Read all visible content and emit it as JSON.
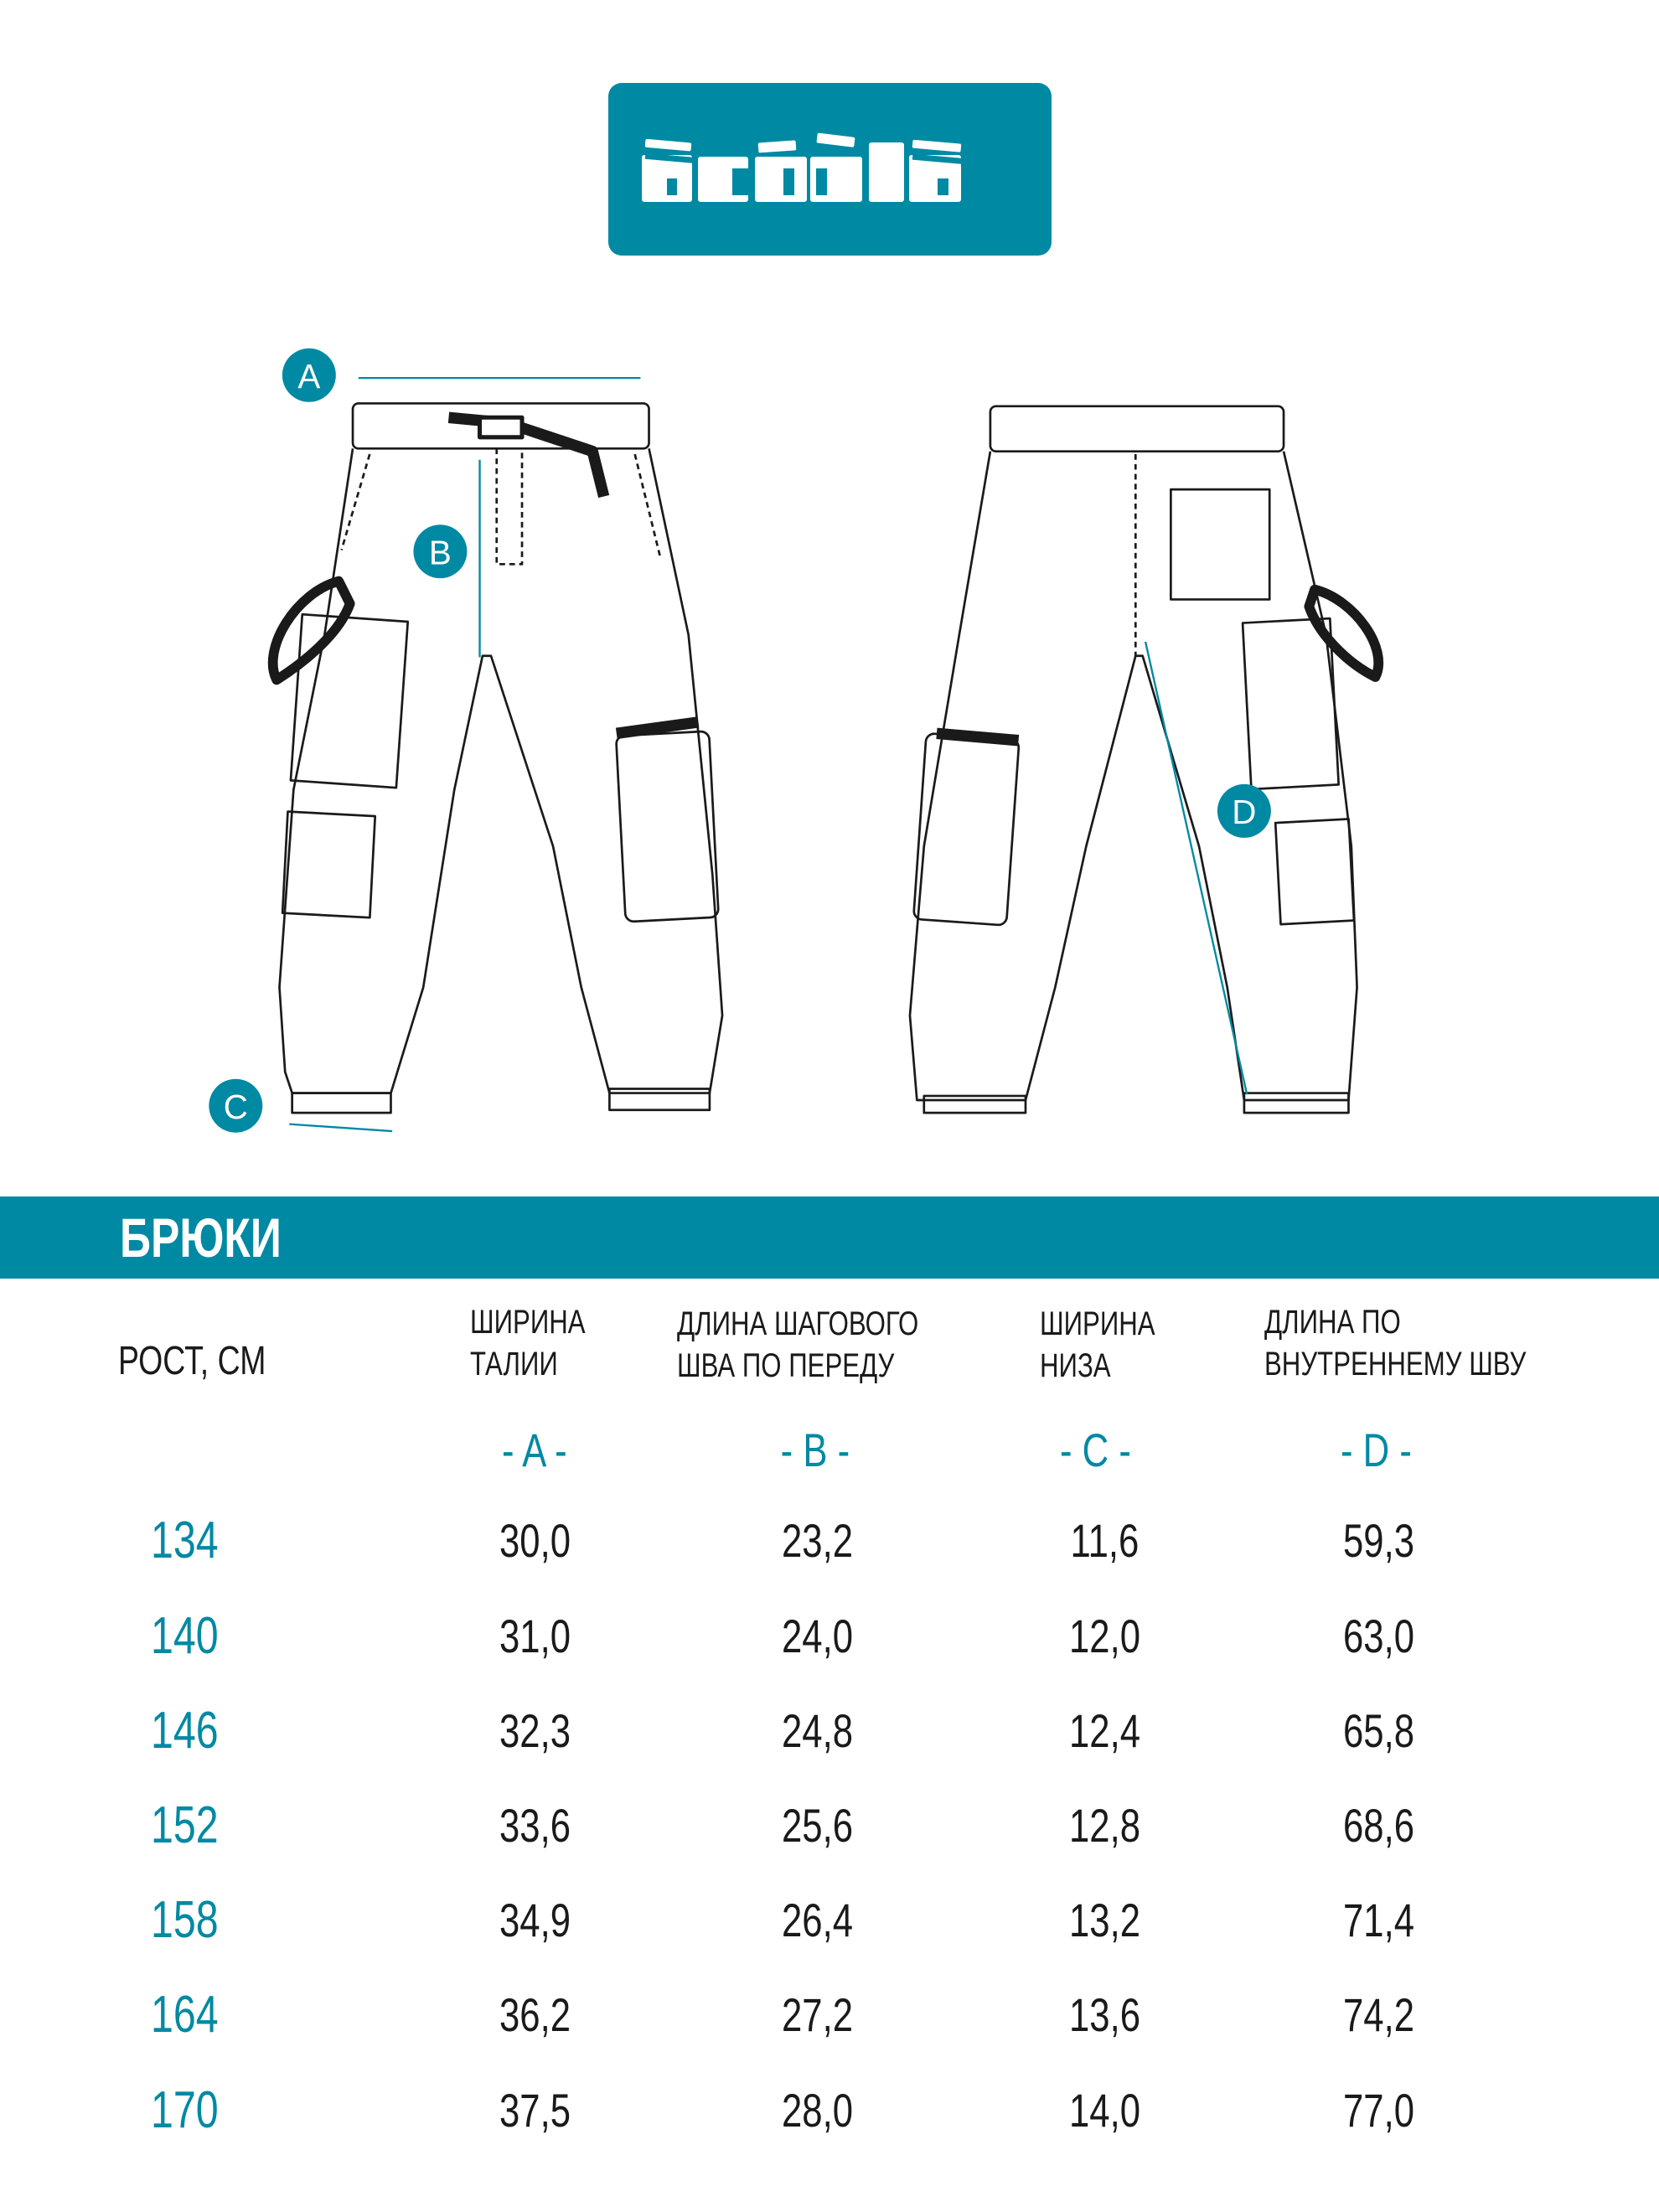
{
  "brand": {
    "logo_text": "acóòla",
    "color": "#0089a3"
  },
  "markers": [
    "A",
    "B",
    "C",
    "D"
  ],
  "section_title": "БРЮКИ",
  "table": {
    "height_header": "РОСТ, СМ",
    "columns": [
      {
        "line1": "ШИРИНА",
        "line2": "ТАЛИИ",
        "letter": "- A -"
      },
      {
        "line1": "ДЛИНА ШАГОВОГО",
        "line2": "ШВА ПО ПЕРЕДУ",
        "letter": "- B -"
      },
      {
        "line1": "ШИРИНА",
        "line2": "НИЗА",
        "letter": "- C -"
      },
      {
        "line1": "ДЛИНА ПО",
        "line2": "ВНУТРЕННЕМУ ШВУ",
        "letter": "- D -"
      }
    ],
    "rows": [
      {
        "height": "134",
        "values": [
          "30,0",
          "23,2",
          "11,6",
          "59,3"
        ]
      },
      {
        "height": "140",
        "values": [
          "31,0",
          "24,0",
          "12,0",
          "63,0"
        ]
      },
      {
        "height": "146",
        "values": [
          "32,3",
          "24,8",
          "12,4",
          "65,8"
        ]
      },
      {
        "height": "152",
        "values": [
          "33,6",
          "25,6",
          "12,8",
          "68,6"
        ]
      },
      {
        "height": "158",
        "values": [
          "34,9",
          "26,4",
          "13,2",
          "71,4"
        ]
      },
      {
        "height": "164",
        "values": [
          "36,2",
          "27,2",
          "13,6",
          "74,2"
        ]
      },
      {
        "height": "170",
        "values": [
          "37,5",
          "28,0",
          "14,0",
          "77,0"
        ]
      }
    ]
  }
}
